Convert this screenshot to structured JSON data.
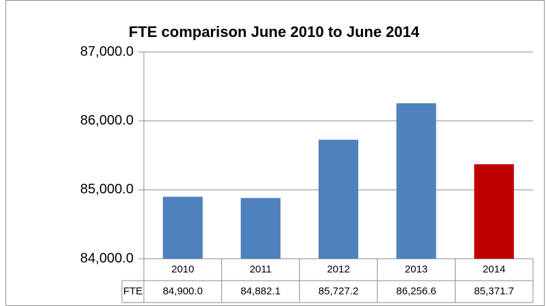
{
  "chart_data": {
    "type": "bar",
    "title": "FTE comparison June 2010 to June 2014",
    "categories": [
      "2010",
      "2011",
      "2012",
      "2013",
      "2014"
    ],
    "series": [
      {
        "name": "FTE",
        "values": [
          84900.0,
          84882.1,
          85727.2,
          86256.6,
          85371.7
        ],
        "value_labels": [
          "84,900.0",
          "84,882.1",
          "85,727.2",
          "86,256.6",
          "85,371.7"
        ],
        "colors": [
          "#4f81bd",
          "#4f81bd",
          "#4f81bd",
          "#4f81bd",
          "#c00000"
        ]
      }
    ],
    "ylim": [
      84000,
      87000
    ],
    "yticks": [
      {
        "value": 84000,
        "label": "84,000.0"
      },
      {
        "value": 85000,
        "label": "85,000.0"
      },
      {
        "value": 86000,
        "label": "86,000.0"
      },
      {
        "value": 87000,
        "label": "87,000.0"
      }
    ],
    "grid": true
  }
}
